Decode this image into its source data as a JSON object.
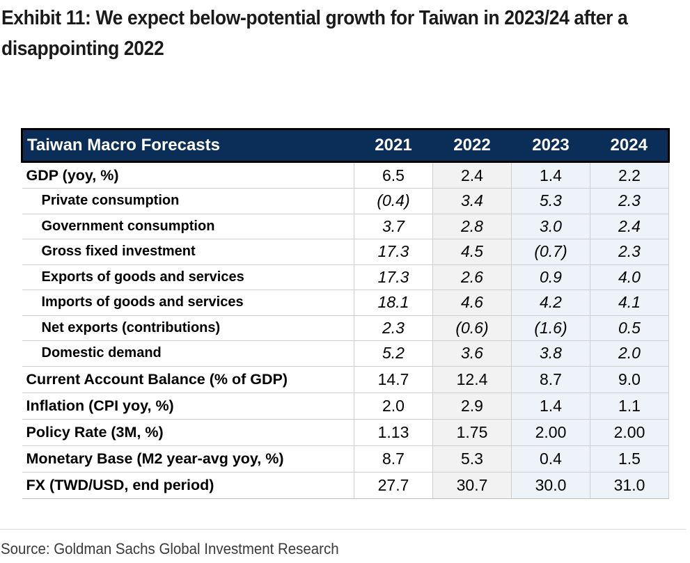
{
  "exhibit": {
    "title": "Exhibit 11: We expect below-potential growth for Taiwan in 2023/24 after a disappointing 2022"
  },
  "table": {
    "header": {
      "label": "Taiwan Macro Forecasts",
      "years": [
        "2021",
        "2022",
        "2023",
        "2024"
      ]
    },
    "rows": [
      {
        "label": "GDP (yoy, %)",
        "values": [
          "6.5",
          "2.4",
          "1.4",
          "2.2"
        ]
      },
      {
        "label": "Private consumption",
        "values": [
          "(0.4)",
          "3.4",
          "5.3",
          "2.3"
        ]
      },
      {
        "label": "Government consumption",
        "values": [
          "3.7",
          "2.8",
          "3.0",
          "2.4"
        ]
      },
      {
        "label": "Gross fixed investment",
        "values": [
          "17.3",
          "4.5",
          "(0.7)",
          "2.3"
        ]
      },
      {
        "label": "Exports of goods and services",
        "values": [
          "17.3",
          "2.6",
          "0.9",
          "4.0"
        ]
      },
      {
        "label": "Imports of goods and services",
        "values": [
          "18.1",
          "4.6",
          "4.2",
          "4.1"
        ]
      },
      {
        "label": "Net exports (contributions)",
        "values": [
          "2.3",
          "(0.6)",
          "(1.6)",
          "0.5"
        ]
      },
      {
        "label": "Domestic demand",
        "values": [
          "5.2",
          "3.6",
          "3.8",
          "2.0"
        ]
      },
      {
        "label": "Current Account Balance (% of GDP)",
        "values": [
          "14.7",
          "12.4",
          "8.7",
          "9.0"
        ]
      },
      {
        "label": "Inflation (CPI yoy, %)",
        "values": [
          "2.0",
          "2.9",
          "1.4",
          "1.1"
        ]
      },
      {
        "label": "Policy Rate (3M, %)",
        "values": [
          "1.13",
          "1.75",
          "2.00",
          "2.00"
        ]
      },
      {
        "label": "Monetary Base (M2 year-avg yoy, %)",
        "values": [
          "8.7",
          "5.3",
          "0.4",
          "1.5"
        ]
      },
      {
        "label": "FX (TWD/USD, end period)",
        "values": [
          "27.7",
          "30.7",
          "30.0",
          "31.0"
        ]
      }
    ]
  },
  "source": {
    "text": "Source: Goldman Sachs Global Investment Research"
  },
  "colors": {
    "header_bg": "#0b2e59",
    "header_text": "#ffffff",
    "col_2022_bg": "#f2f2f2",
    "col_2023_2024_bg": "#eef3fa"
  }
}
